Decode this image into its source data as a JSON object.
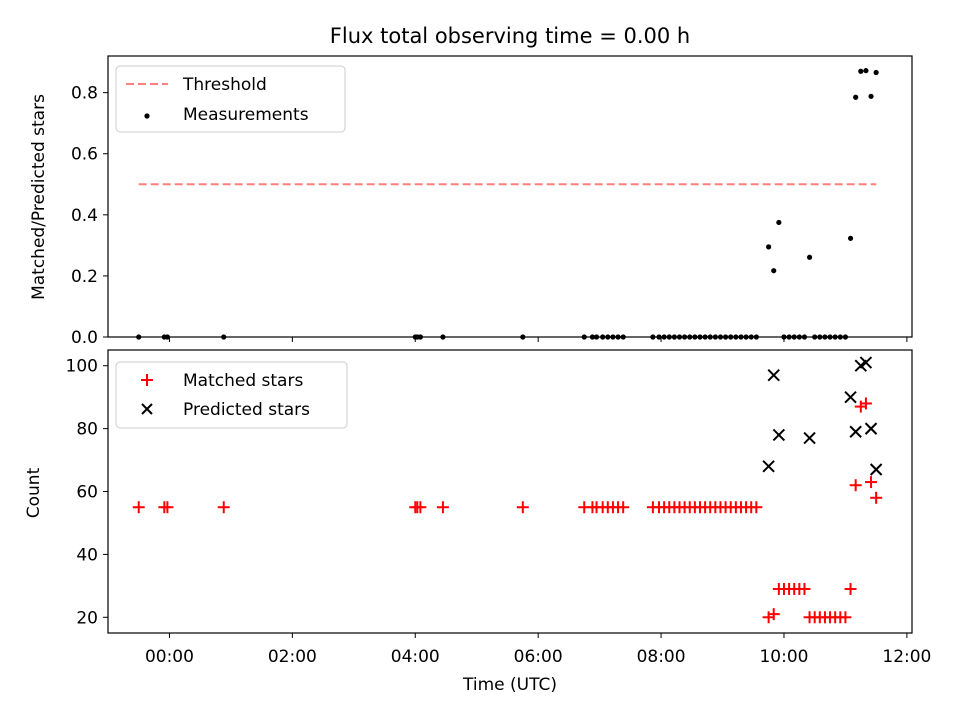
{
  "chart_data": [
    {
      "type": "scatter",
      "title": "Flux total observing time = 0.00 h",
      "xlabel": "",
      "ylabel": "Matched/Predicted stars",
      "ylim": [
        0.0,
        0.92
      ],
      "yticks": [
        "0.0",
        "0.2",
        "0.4",
        "0.6",
        "0.8"
      ],
      "legend_position": "upper-left",
      "series": [
        {
          "name": "Threshold",
          "kind": "dashed-line",
          "color": "#ff7f7f",
          "x": [
            "-00:30",
            "11:30"
          ],
          "y": [
            0.5,
            0.5
          ]
        },
        {
          "name": "Measurements",
          "kind": "points",
          "color": "#000000",
          "points": [
            [
              "-00:30",
              0.0
            ],
            [
              "-00:05",
              0.0
            ],
            [
              "-00:02",
              0.0
            ],
            [
              "00:53",
              0.0
            ],
            [
              "04:00",
              0.0
            ],
            [
              "04:02",
              0.0
            ],
            [
              "04:05",
              0.0
            ],
            [
              "04:27",
              0.0
            ],
            [
              "05:45",
              0.0
            ],
            [
              "06:45",
              0.0
            ],
            [
              "06:53",
              0.0
            ],
            [
              "06:57",
              0.0
            ],
            [
              "07:03",
              0.0
            ],
            [
              "07:08",
              0.0
            ],
            [
              "07:13",
              0.0
            ],
            [
              "07:18",
              0.0
            ],
            [
              "07:23",
              0.0
            ],
            [
              "07:52",
              0.0
            ],
            [
              "07:58",
              0.0
            ],
            [
              "08:03",
              0.0
            ],
            [
              "08:08",
              0.0
            ],
            [
              "08:13",
              0.0
            ],
            [
              "08:18",
              0.0
            ],
            [
              "08:23",
              0.0
            ],
            [
              "08:28",
              0.0
            ],
            [
              "08:33",
              0.0
            ],
            [
              "08:38",
              0.0
            ],
            [
              "08:43",
              0.0
            ],
            [
              "08:48",
              0.0
            ],
            [
              "08:53",
              0.0
            ],
            [
              "08:58",
              0.0
            ],
            [
              "09:03",
              0.0
            ],
            [
              "09:08",
              0.0
            ],
            [
              "09:13",
              0.0
            ],
            [
              "09:18",
              0.0
            ],
            [
              "09:23",
              0.0
            ],
            [
              "09:28",
              0.0
            ],
            [
              "09:33",
              0.0
            ],
            [
              "09:45",
              0.295
            ],
            [
              "09:50",
              0.217
            ],
            [
              "09:55",
              0.375
            ],
            [
              "10:00",
              0.0
            ],
            [
              "10:05",
              0.0
            ],
            [
              "10:10",
              0.0
            ],
            [
              "10:15",
              0.0
            ],
            [
              "10:20",
              0.0
            ],
            [
              "10:25",
              0.261
            ],
            [
              "10:30",
              0.0
            ],
            [
              "10:35",
              0.0
            ],
            [
              "10:40",
              0.0
            ],
            [
              "10:45",
              0.0
            ],
            [
              "10:50",
              0.0
            ],
            [
              "10:55",
              0.0
            ],
            [
              "11:00",
              0.0
            ],
            [
              "11:05",
              0.323
            ],
            [
              "11:10",
              0.785
            ],
            [
              "11:15",
              0.87
            ],
            [
              "11:20",
              0.872
            ],
            [
              "11:25",
              0.788
            ],
            [
              "11:30",
              0.866
            ]
          ]
        }
      ]
    },
    {
      "type": "scatter",
      "title": "",
      "xlabel": "Time (UTC)",
      "ylabel": "Count",
      "ylim": [
        15,
        105
      ],
      "yticks": [
        "20",
        "40",
        "60",
        "80",
        "100"
      ],
      "xlim": [
        "-01:00",
        "12:05"
      ],
      "xticks": [
        "00:00",
        "02:00",
        "04:00",
        "06:00",
        "08:00",
        "10:00",
        "12:00"
      ],
      "legend_position": "upper-left",
      "series": [
        {
          "name": "Matched stars",
          "marker": "+",
          "color": "#ff0000",
          "points": [
            [
              "-00:30",
              55
            ],
            [
              "-00:05",
              55
            ],
            [
              "-00:02",
              55
            ],
            [
              "00:53",
              55
            ],
            [
              "04:00",
              55
            ],
            [
              "04:02",
              55
            ],
            [
              "04:05",
              55
            ],
            [
              "04:27",
              55
            ],
            [
              "05:45",
              55
            ],
            [
              "06:45",
              55
            ],
            [
              "06:53",
              55
            ],
            [
              "06:57",
              55
            ],
            [
              "07:03",
              55
            ],
            [
              "07:08",
              55
            ],
            [
              "07:13",
              55
            ],
            [
              "07:18",
              55
            ],
            [
              "07:23",
              55
            ],
            [
              "07:52",
              55
            ],
            [
              "07:58",
              55
            ],
            [
              "08:03",
              55
            ],
            [
              "08:08",
              55
            ],
            [
              "08:13",
              55
            ],
            [
              "08:18",
              55
            ],
            [
              "08:23",
              55
            ],
            [
              "08:28",
              55
            ],
            [
              "08:33",
              55
            ],
            [
              "08:38",
              55
            ],
            [
              "08:43",
              55
            ],
            [
              "08:48",
              55
            ],
            [
              "08:53",
              55
            ],
            [
              "08:58",
              55
            ],
            [
              "09:03",
              55
            ],
            [
              "09:08",
              55
            ],
            [
              "09:13",
              55
            ],
            [
              "09:18",
              55
            ],
            [
              "09:23",
              55
            ],
            [
              "09:28",
              55
            ],
            [
              "09:33",
              55
            ],
            [
              "09:45",
              20
            ],
            [
              "09:50",
              21
            ],
            [
              "09:55",
              29
            ],
            [
              "10:00",
              29
            ],
            [
              "10:05",
              29
            ],
            [
              "10:10",
              29
            ],
            [
              "10:15",
              29
            ],
            [
              "10:20",
              29
            ],
            [
              "10:25",
              20
            ],
            [
              "10:30",
              20
            ],
            [
              "10:35",
              20
            ],
            [
              "10:40",
              20
            ],
            [
              "10:45",
              20
            ],
            [
              "10:50",
              20
            ],
            [
              "10:55",
              20
            ],
            [
              "11:00",
              20
            ],
            [
              "11:05",
              29
            ],
            [
              "11:10",
              62
            ],
            [
              "11:15",
              87
            ],
            [
              "11:20",
              88
            ],
            [
              "11:25",
              63
            ],
            [
              "11:30",
              58
            ]
          ]
        },
        {
          "name": "Predicted stars",
          "marker": "x",
          "color": "#000000",
          "points": [
            [
              "09:45",
              68
            ],
            [
              "09:50",
              97
            ],
            [
              "09:55",
              78
            ],
            [
              "10:25",
              77
            ],
            [
              "11:05",
              90
            ],
            [
              "11:10",
              79
            ],
            [
              "11:15",
              100
            ],
            [
              "11:20",
              101
            ],
            [
              "11:25",
              80
            ],
            [
              "11:30",
              67
            ]
          ]
        }
      ]
    }
  ]
}
